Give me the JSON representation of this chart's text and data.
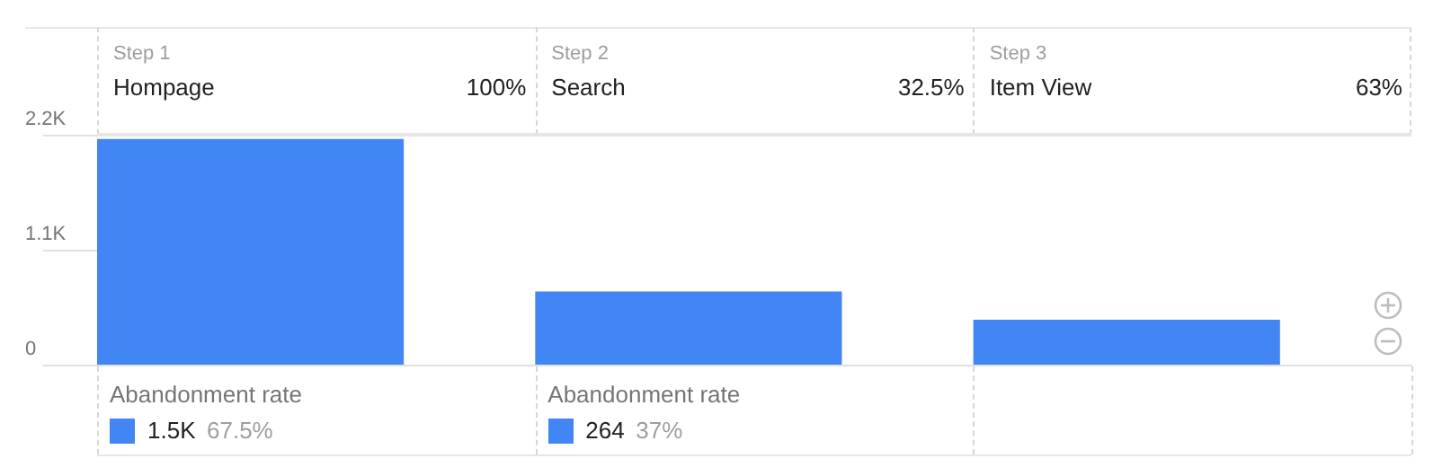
{
  "chart_data": {
    "type": "bar",
    "categories": [
      "Hompage",
      "Search",
      "Item View"
    ],
    "values": [
      2160,
      700,
      430
    ],
    "color": "#4285f4",
    "ylim": [
      0,
      2200
    ],
    "yticks": [
      0,
      {
        "value": 1100,
        "label": "1.1K"
      },
      {
        "value": 2200,
        "label": "2.2K"
      }
    ],
    "grid": false,
    "annotations": [
      "Step 1",
      "100%",
      "Step 2",
      "32.5%",
      "Step 3",
      "63%",
      "Abandonment rate",
      "1.5K",
      "67.5%",
      "Abandonment rate",
      "264",
      "37%"
    ]
  }
}
